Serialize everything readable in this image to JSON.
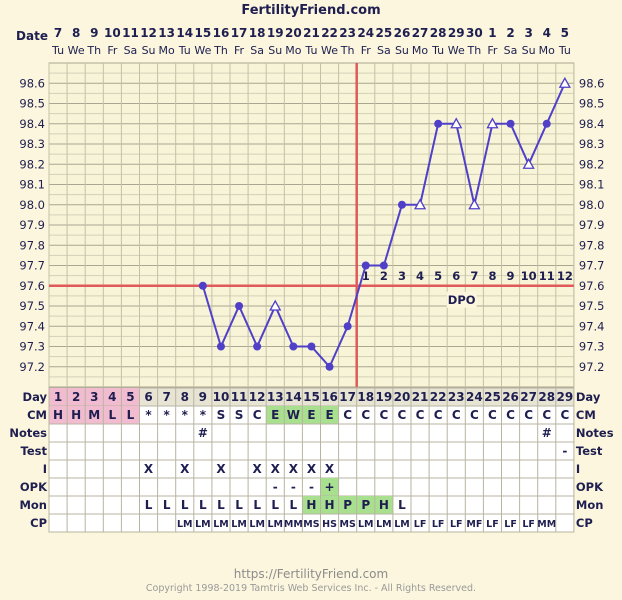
{
  "brand": "FertilityFriend.com",
  "footer": {
    "url": "https://FertilityFriend.com",
    "copyright": "Copyright 1998-2019 Tamtris Web Services Inc. - All Rights Reserved."
  },
  "colors": {
    "background": "#fbf6dd",
    "line": "#5040c8",
    "coverline": "#e05a5a",
    "grid": "#b8b4a0",
    "menstruation": "#f2bcd0",
    "fertile": "#a8e090",
    "title": "#1e1e50"
  },
  "chart_data": {
    "type": "line",
    "y_label_left": "Date",
    "dates": [
      "7",
      "8",
      "9",
      "10",
      "11",
      "12",
      "13",
      "14",
      "15",
      "16",
      "17",
      "18",
      "19",
      "20",
      "21",
      "22",
      "23",
      "24",
      "25",
      "26",
      "27",
      "28",
      "29",
      "30",
      "1",
      "2",
      "3",
      "4",
      "5"
    ],
    "weekdays": [
      "Tu",
      "We",
      "Th",
      "Fr",
      "Sa",
      "Su",
      "Mo",
      "Tu",
      "We",
      "Th",
      "Fr",
      "Sa",
      "Su",
      "Mo",
      "Tu",
      "We",
      "Th",
      "Fr",
      "Sa",
      "Su",
      "Mo",
      "Tu",
      "We",
      "Th",
      "Fr",
      "Sa",
      "Su",
      "Mo",
      "Tu"
    ],
    "y_ticks": [
      "98.6",
      "98.5",
      "98.4",
      "98.3",
      "98.2",
      "98.1",
      "98.0",
      "97.9",
      "97.8",
      "97.7",
      "97.6",
      "97.5",
      "97.4",
      "97.3",
      "97.2"
    ],
    "ylim": [
      97.1,
      98.7
    ],
    "temperatures": [
      null,
      null,
      null,
      null,
      null,
      null,
      null,
      null,
      97.6,
      97.3,
      97.5,
      97.3,
      97.5,
      97.3,
      97.3,
      97.2,
      97.4,
      97.7,
      97.7,
      98.0,
      98.0,
      98.4,
      98.4,
      98.0,
      98.4,
      98.4,
      98.2,
      98.4,
      98.6
    ],
    "open_markers": [
      false,
      false,
      false,
      false,
      false,
      false,
      false,
      false,
      false,
      false,
      false,
      false,
      true,
      false,
      false,
      false,
      false,
      false,
      false,
      false,
      true,
      false,
      true,
      true,
      true,
      false,
      true,
      false,
      true
    ],
    "coverline": 97.6,
    "ovulation_day": 17,
    "dpo_label": "DPO",
    "dpo_numbers": [
      "1",
      "2",
      "3",
      "4",
      "5",
      "6",
      "7",
      "8",
      "9",
      "10",
      "11",
      "12"
    ],
    "rows": [
      {
        "label": "Day",
        "values": [
          "1",
          "2",
          "3",
          "4",
          "5",
          "6",
          "7",
          "8",
          "9",
          "10",
          "11",
          "12",
          "13",
          "14",
          "15",
          "16",
          "17",
          "18",
          "19",
          "20",
          "21",
          "22",
          "23",
          "24",
          "25",
          "26",
          "27",
          "28",
          "29"
        ]
      },
      {
        "label": "CM",
        "values": [
          "H",
          "H",
          "M",
          "L",
          "L",
          "*",
          "*",
          "*",
          "*",
          "S",
          "S",
          "C",
          "E",
          "W",
          "E",
          "E",
          "C",
          "C",
          "C",
          "C",
          "C",
          "C",
          "C",
          "C",
          "C",
          "C",
          "C",
          "C",
          "C"
        ]
      },
      {
        "label": "Notes",
        "values": [
          "",
          "",
          "",
          "",
          "",
          "",
          "",
          "",
          "#",
          "",
          "",
          "",
          "",
          "",
          "",
          "",
          "",
          "",
          "",
          "",
          "",
          "",
          "",
          "",
          "",
          "",
          "",
          "#",
          ""
        ],
        "right_label": "Notes"
      },
      {
        "label": "Test",
        "values": [
          "",
          "",
          "",
          "",
          "",
          "",
          "",
          "",
          "",
          "",
          "",
          "",
          "",
          "",
          "",
          "",
          "",
          "",
          "",
          "",
          "",
          "",
          "",
          "",
          "",
          "",
          "",
          "",
          "-"
        ]
      },
      {
        "label": "I",
        "values": [
          "",
          "",
          "",
          "",
          "",
          "X",
          "",
          "X",
          "",
          "X",
          "",
          "X",
          "X",
          "X",
          "X",
          "X",
          "",
          "",
          "",
          "",
          "",
          "",
          "",
          "",
          "",
          "",
          "",
          "",
          ""
        ]
      },
      {
        "label": "OPK",
        "values": [
          "",
          "",
          "",
          "",
          "",
          "",
          "",
          "",
          "",
          "",
          "",
          "",
          "-",
          "-",
          "-",
          "+",
          "",
          "",
          "",
          "",
          "",
          "",
          "",
          "",
          "",
          "",
          "",
          "",
          ""
        ]
      },
      {
        "label": "Mon",
        "values": [
          "",
          "",
          "",
          "",
          "",
          "L",
          "L",
          "L",
          "L",
          "L",
          "L",
          "L",
          "L",
          "L",
          "H",
          "H",
          "P",
          "P",
          "H",
          "L",
          "",
          "",
          "",
          "",
          "",
          "",
          "",
          "",
          ""
        ]
      },
      {
        "label": "CP",
        "values": [
          "",
          "",
          "",
          "",
          "",
          "",
          "",
          "LM",
          "LM",
          "LM",
          "LM",
          "LM",
          "LM",
          "MM",
          "MS",
          "HS",
          "MS",
          "LM",
          "LM",
          "LM",
          "LF",
          "LF",
          "LF",
          "MF",
          "LF",
          "LF",
          "LF",
          "MM",
          ""
        ]
      }
    ]
  }
}
